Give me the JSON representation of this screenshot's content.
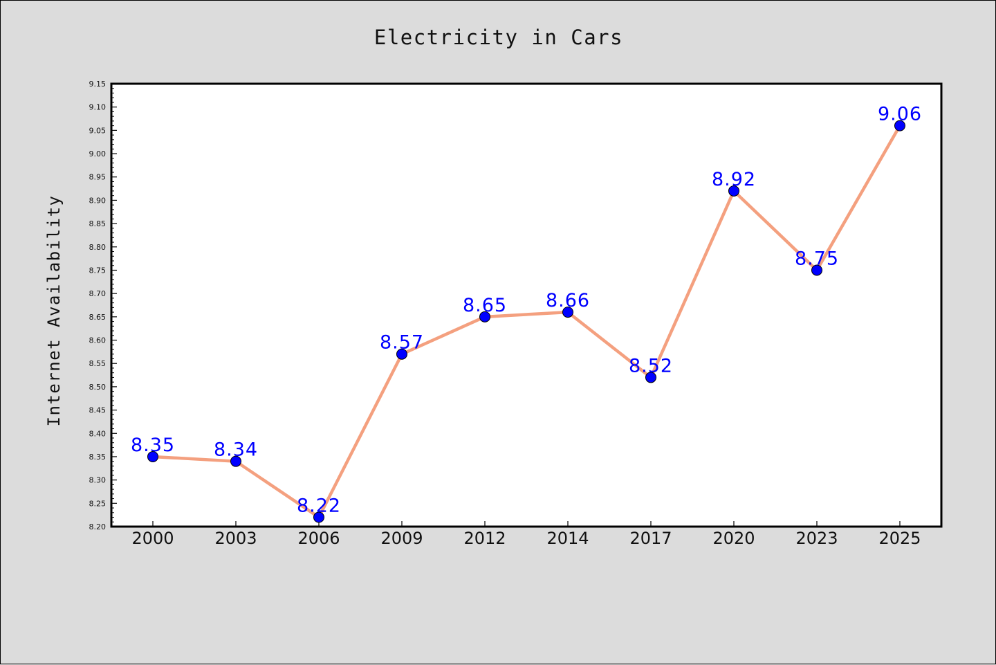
{
  "chart_data": {
    "type": "line",
    "title": "Electricity in Cars",
    "xlabel": "",
    "ylabel": "Internet Availability",
    "categories": [
      "2000",
      "2003",
      "2006",
      "2009",
      "2012",
      "2014",
      "2017",
      "2020",
      "2023",
      "2025"
    ],
    "series": [
      {
        "values": [
          8.35,
          8.34,
          8.22,
          8.57,
          8.65,
          8.66,
          8.52,
          8.92,
          8.75,
          9.06
        ],
        "data_labels": [
          "8.35",
          "8.34",
          "8.22",
          "8.57",
          "8.65",
          "8.66",
          "8.52",
          "8.92",
          "8.75",
          "9.06"
        ]
      }
    ],
    "ylim": [
      8.2,
      9.15
    ],
    "yticks": [
      "8.20",
      "8.25",
      "8.30",
      "8.35",
      "8.40",
      "8.45",
      "8.50",
      "8.55",
      "8.60",
      "8.65",
      "8.70",
      "8.75",
      "8.80",
      "8.85",
      "8.90",
      "8.95",
      "9.00",
      "9.05",
      "9.10",
      "9.15"
    ],
    "grid": false,
    "legend": "none",
    "colors": {
      "line": "#f4a07f",
      "marker": "#0000ff",
      "data_label": "#0000ff",
      "background": "#dcdcdc",
      "plot_background": "#ffffff"
    }
  }
}
